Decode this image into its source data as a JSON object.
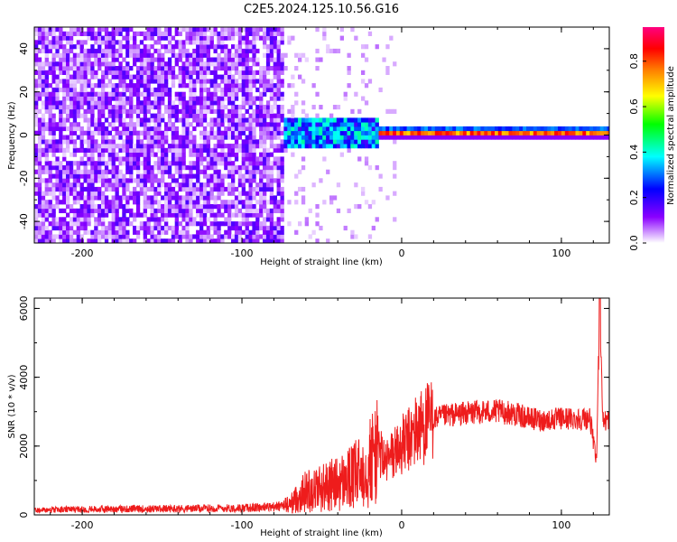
{
  "title": "C2E5.2024.125.10.56.G16",
  "chart_data": [
    {
      "type": "heatmap",
      "xlabel": "Height of straight line (km)",
      "ylabel": "Frequency (Hz)",
      "xlim": [
        -230,
        130
      ],
      "ylim": [
        -50,
        50
      ],
      "xticks": [
        -200,
        -100,
        0,
        100
      ],
      "yticks": [
        -40,
        -20,
        0,
        20,
        40
      ],
      "colorbar": {
        "label": "Normalized spectral amplitude",
        "range": [
          0,
          0.95
        ],
        "ticks": [
          0.0,
          0.2,
          0.4,
          0.6,
          0.8
        ],
        "stops": [
          "#ffffff",
          "#8a00ff",
          "#0000ff",
          "#00ffff",
          "#00ff00",
          "#ffff00",
          "#ff8000",
          "#ff0000",
          "#ff0080"
        ]
      },
      "regions": [
        {
          "name": "noise",
          "x_range": [
            -230,
            -75
          ],
          "frequency_range": [
            -50,
            50
          ],
          "amplitude": 0.1
        },
        {
          "name": "onset",
          "x_range": [
            -75,
            -15
          ],
          "frequency_range": [
            -7,
            7
          ],
          "amplitude": 0.35
        },
        {
          "name": "signal",
          "x_range": [
            -15,
            130
          ],
          "frequency_center": 0.5,
          "frequency_halfwidth": 3,
          "amplitude": 0.85
        }
      ]
    },
    {
      "type": "line",
      "xlabel": "Height of straight line (km)",
      "ylabel": "SNR (10 * v/v)",
      "xlim": [
        -230,
        130
      ],
      "ylim": [
        0,
        6300
      ],
      "xticks": [
        -200,
        -100,
        0,
        100
      ],
      "yticks": [
        0,
        2000,
        4000,
        6000
      ],
      "color": "#ee1c1c",
      "series": [
        {
          "x": [
            -230,
            -200,
            -150,
            -100,
            -80,
            -70,
            -65,
            -60,
            -50,
            -40,
            -30,
            -20,
            -15,
            -10,
            -5,
            0,
            5,
            10,
            20,
            30,
            40,
            50,
            60,
            70,
            80,
            90,
            100,
            110,
            118,
            122,
            124,
            126,
            130
          ],
          "y": [
            150,
            180,
            200,
            220,
            260,
            300,
            500,
            700,
            800,
            900,
            1100,
            1500,
            2000,
            1500,
            1800,
            2000,
            2200,
            2500,
            2800,
            2900,
            2950,
            3000,
            3000,
            2950,
            2800,
            2750,
            2800,
            2800,
            2800,
            1500,
            6300,
            2700,
            2800
          ]
        }
      ]
    }
  ]
}
